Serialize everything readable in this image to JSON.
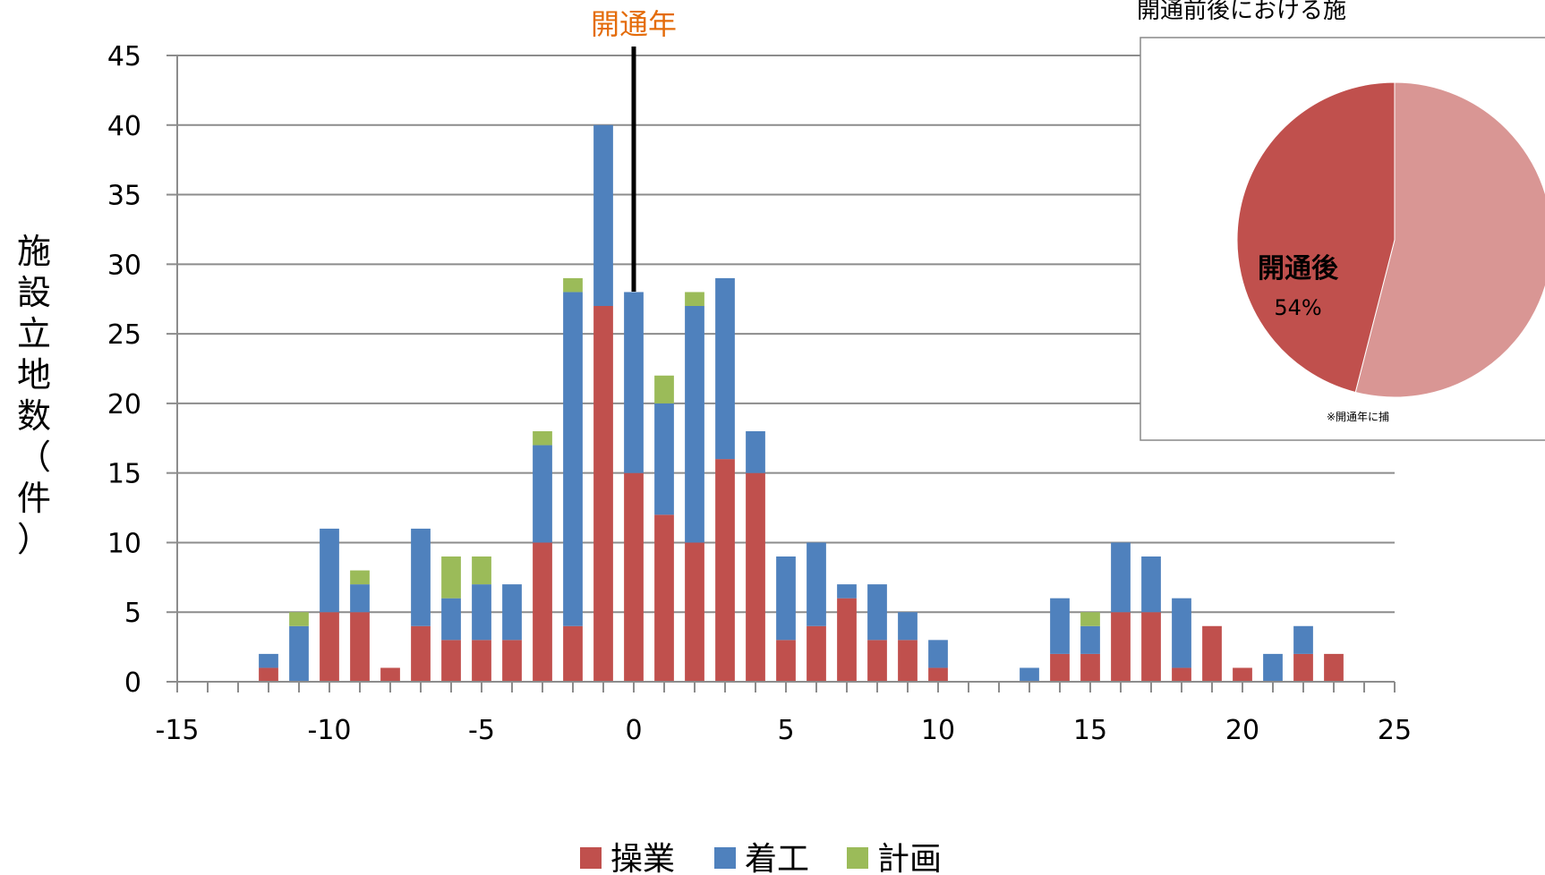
{
  "chart_data": [
    {
      "type": "bar",
      "stacked": true,
      "title": "",
      "xlabel": "",
      "ylabel": "施設立地数（件）",
      "xlim": [
        -15,
        25
      ],
      "ylim": [
        0,
        45
      ],
      "x_ticks": [
        "-15",
        "-10",
        "-5",
        "0",
        "5",
        "10",
        "15",
        "20",
        "25"
      ],
      "y_ticks": [
        "0",
        "5",
        "10",
        "15",
        "20",
        "25",
        "30",
        "35",
        "40",
        "45"
      ],
      "grid": true,
      "legend_position": "bottom",
      "annotation": {
        "text": "開通年",
        "x": 0,
        "color": "#E46C0A"
      },
      "x": [
        -12,
        -11,
        -10,
        -9,
        -8,
        -7,
        -6,
        -5,
        -4,
        -3,
        -2,
        -1,
        0,
        1,
        2,
        3,
        4,
        5,
        6,
        7,
        8,
        9,
        10,
        13,
        14,
        15,
        16,
        17,
        18,
        19,
        20,
        21,
        22,
        23
      ],
      "series": [
        {
          "name": "操業",
          "color": "#C0504D",
          "values": [
            1,
            0,
            5,
            5,
            1,
            4,
            3,
            3,
            3,
            10,
            4,
            27,
            15,
            12,
            10,
            16,
            15,
            3,
            4,
            6,
            3,
            3,
            1,
            0,
            2,
            2,
            5,
            5,
            1,
            4,
            1,
            0,
            2,
            2
          ]
        },
        {
          "name": "着工",
          "color": "#4F81BD",
          "values": [
            1,
            4,
            6,
            2,
            0,
            7,
            3,
            4,
            4,
            7,
            24,
            13,
            13,
            8,
            17,
            13,
            3,
            6,
            6,
            1,
            4,
            2,
            2,
            1,
            4,
            2,
            5,
            4,
            5,
            0,
            0,
            2,
            2,
            0
          ]
        },
        {
          "name": "計画",
          "color": "#9BBB59",
          "values": [
            0,
            1,
            0,
            1,
            0,
            0,
            3,
            2,
            0,
            1,
            1,
            0,
            0,
            2,
            1,
            0,
            0,
            0,
            0,
            0,
            0,
            0,
            0,
            0,
            0,
            1,
            0,
            0,
            0,
            0,
            0,
            0,
            0,
            0
          ]
        }
      ]
    },
    {
      "type": "pie",
      "title": "開通前後における施",
      "slices": [
        {
          "label": "開通後",
          "value": 54,
          "display": "54%",
          "color": "#D99694"
        },
        {
          "label": "",
          "value": 46,
          "display": "",
          "color": "#C0504D"
        }
      ],
      "footnote": "※開通年に捕"
    }
  ],
  "legend": [
    "操業",
    "着工",
    "計画"
  ]
}
